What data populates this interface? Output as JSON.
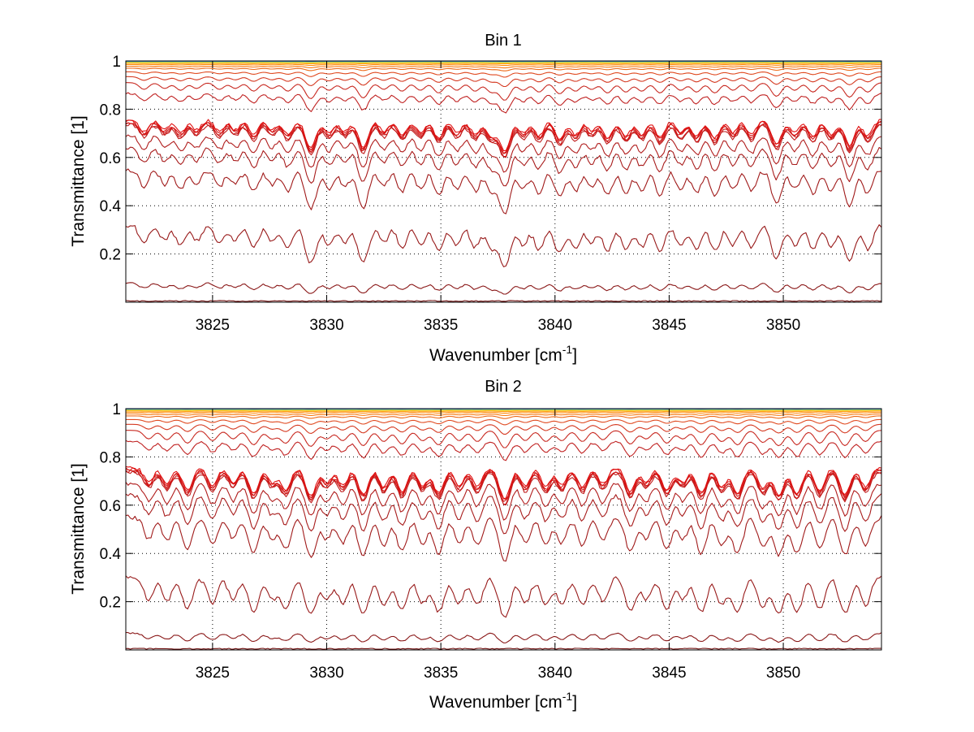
{
  "chart_data": [
    {
      "type": "line",
      "title": "Bin 1",
      "xlabel": "Wavenumber [cm",
      "xlabel_superscript": "-1",
      "xlabel_suffix": "]",
      "ylabel": "Transmittance [1]",
      "xlim": [
        3821.2,
        3854.3
      ],
      "ylim": [
        0,
        1
      ],
      "grid": true,
      "xticks": [
        3825,
        3830,
        3835,
        3840,
        3845,
        3850
      ],
      "xtick_labels": [
        "3825",
        "3830",
        "3835",
        "3840",
        "3845",
        "3850"
      ],
      "yticks": [
        0.2,
        0.4,
        0.6,
        0.8,
        1
      ],
      "ytick_labels": [
        "0.2",
        "0.4",
        "0.6",
        "0.8",
        "1"
      ],
      "legend": "none",
      "series_baselines": [
        1.0,
        0.999,
        0.998,
        0.997,
        0.995,
        0.993,
        0.99,
        0.985,
        0.978,
        0.97,
        0.955,
        0.935,
        0.91,
        0.865,
        0.755,
        0.75,
        0.745,
        0.74,
        0.735,
        0.69,
        0.64,
        0.55,
        0.32,
        0.08,
        0.005
      ],
      "series_colors": [
        "#1f3fbf",
        "#2f7fdf",
        "#3fbfdf",
        "#8fdf6f",
        "#efdf3f",
        "#ffbf1f",
        "#ff9f0f",
        "#ff8a0a",
        "#f77a10",
        "#ee6a18",
        "#e04a20",
        "#d53a22",
        "#c82a22",
        "#c02222",
        "#e01010",
        "#d81414",
        "#d01818",
        "#c81a1a",
        "#c01c1c",
        "#b01c1c",
        "#a81c1c",
        "#a01a1a",
        "#981a1a",
        "#8a1818",
        "#701010"
      ],
      "absorption_lines": [
        [
          3822.0,
          0.35
        ],
        [
          3822.9,
          0.3
        ],
        [
          3823.6,
          0.4
        ],
        [
          3824.3,
          0.3
        ],
        [
          3825.3,
          0.35
        ],
        [
          3826.0,
          0.3
        ],
        [
          3826.8,
          0.45
        ],
        [
          3827.6,
          0.3
        ],
        [
          3828.3,
          0.45
        ],
        [
          3829.3,
          0.9
        ],
        [
          3830.1,
          0.4
        ],
        [
          3830.8,
          0.35
        ],
        [
          3831.6,
          0.85
        ],
        [
          3832.5,
          0.35
        ],
        [
          3833.3,
          0.45
        ],
        [
          3834.1,
          0.4
        ],
        [
          3834.9,
          0.55
        ],
        [
          3835.7,
          0.4
        ],
        [
          3836.5,
          0.45
        ],
        [
          3837.2,
          0.5
        ],
        [
          3837.8,
          1.0
        ],
        [
          3838.6,
          0.4
        ],
        [
          3839.3,
          0.5
        ],
        [
          3840.2,
          0.6
        ],
        [
          3840.9,
          0.45
        ],
        [
          3841.6,
          0.35
        ],
        [
          3842.3,
          0.55
        ],
        [
          3843.1,
          0.5
        ],
        [
          3843.8,
          0.45
        ],
        [
          3844.6,
          0.55
        ],
        [
          3845.5,
          0.4
        ],
        [
          3846.2,
          0.5
        ],
        [
          3847.0,
          0.55
        ],
        [
          3847.8,
          0.4
        ],
        [
          3848.6,
          0.45
        ],
        [
          3849.7,
          0.75
        ],
        [
          3850.5,
          0.4
        ],
        [
          3851.3,
          0.5
        ],
        [
          3852.1,
          0.45
        ],
        [
          3852.9,
          0.8
        ],
        [
          3853.7,
          0.5
        ]
      ]
    },
    {
      "type": "line",
      "title": "Bin 2",
      "xlabel": "Wavenumber [cm",
      "xlabel_superscript": "-1",
      "xlabel_suffix": "]",
      "ylabel": "Transmittance [1]",
      "xlim": [
        3821.2,
        3854.3
      ],
      "ylim": [
        0,
        1
      ],
      "grid": true,
      "xticks": [
        3825,
        3830,
        3835,
        3840,
        3845,
        3850
      ],
      "xtick_labels": [
        "3825",
        "3830",
        "3835",
        "3840",
        "3845",
        "3850"
      ],
      "yticks": [
        0.2,
        0.4,
        0.6,
        0.8,
        1
      ],
      "ytick_labels": [
        "0.2",
        "0.4",
        "0.6",
        "0.8",
        "1"
      ],
      "legend": "none",
      "series_baselines": [
        1.0,
        0.999,
        0.998,
        0.997,
        0.995,
        0.993,
        0.99,
        0.985,
        0.978,
        0.97,
        0.955,
        0.935,
        0.91,
        0.865,
        0.755,
        0.75,
        0.745,
        0.74,
        0.735,
        0.69,
        0.64,
        0.55,
        0.3,
        0.07,
        0.005
      ],
      "series_colors": [
        "#1f3fbf",
        "#2f7fdf",
        "#3fbfdf",
        "#8fdf6f",
        "#efdf3f",
        "#ffbf1f",
        "#ff9f0f",
        "#ff8a0a",
        "#f77a10",
        "#ee6a18",
        "#e04a20",
        "#d53a22",
        "#c82a22",
        "#c02222",
        "#e01010",
        "#d81414",
        "#d01818",
        "#c81a1a",
        "#c01c1c",
        "#b01c1c",
        "#a81c1c",
        "#a01a1a",
        "#981a1a",
        "#8a1818",
        "#701010"
      ],
      "absorption_lines": [
        [
          3822.2,
          0.45
        ],
        [
          3823.0,
          0.5
        ],
        [
          3823.9,
          0.7
        ],
        [
          3825.0,
          0.55
        ],
        [
          3825.9,
          0.45
        ],
        [
          3826.8,
          0.8
        ],
        [
          3827.6,
          0.45
        ],
        [
          3828.2,
          0.7
        ],
        [
          3829.3,
          0.9
        ],
        [
          3830.0,
          0.45
        ],
        [
          3830.7,
          0.55
        ],
        [
          3831.6,
          0.85
        ],
        [
          3832.5,
          0.6
        ],
        [
          3833.3,
          0.75
        ],
        [
          3834.2,
          0.55
        ],
        [
          3834.9,
          0.8
        ],
        [
          3835.8,
          0.55
        ],
        [
          3836.6,
          0.6
        ],
        [
          3837.8,
          1.0
        ],
        [
          3838.7,
          0.55
        ],
        [
          3839.6,
          0.6
        ],
        [
          3840.3,
          0.55
        ],
        [
          3841.2,
          0.6
        ],
        [
          3842.1,
          0.5
        ],
        [
          3843.3,
          0.75
        ],
        [
          3844.0,
          0.45
        ],
        [
          3844.9,
          0.7
        ],
        [
          3845.6,
          0.45
        ],
        [
          3846.4,
          0.8
        ],
        [
          3847.3,
          0.6
        ],
        [
          3848.0,
          0.8
        ],
        [
          3849.1,
          0.65
        ],
        [
          3849.8,
          0.85
        ],
        [
          3850.6,
          0.8
        ],
        [
          3851.6,
          0.7
        ],
        [
          3852.7,
          0.85
        ],
        [
          3853.6,
          0.6
        ]
      ]
    }
  ]
}
